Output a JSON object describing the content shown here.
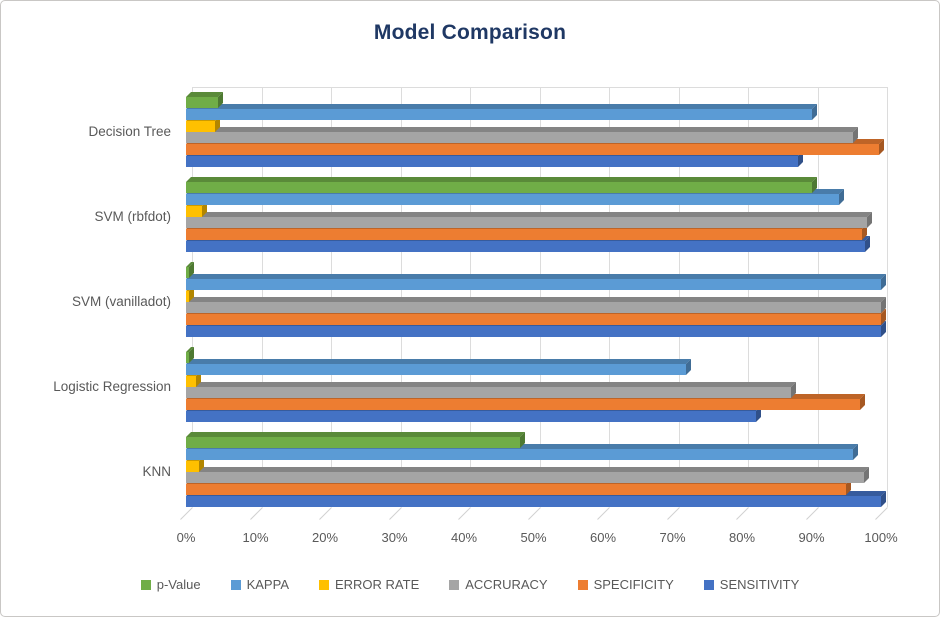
{
  "title": "Model Comparison",
  "style": {
    "title_color": "#1f3864",
    "text_color": "#595959",
    "gridline_color": "#dcdcdc",
    "background": "#ffffff"
  },
  "chart_data": {
    "type": "bar",
    "orientation": "horizontal",
    "effect": "3d",
    "title": "Model Comparison",
    "xlabel": "",
    "ylabel": "",
    "xlim": [
      0,
      100
    ],
    "grid": true,
    "legend_position": "bottom",
    "value_unit": "percent",
    "x_ticks": [
      "0%",
      "10%",
      "20%",
      "30%",
      "40%",
      "50%",
      "60%",
      "70%",
      "80%",
      "90%",
      "100%"
    ],
    "categories": [
      "Decision Tree",
      "SVM (rbfdot)",
      "SVM (vanilladot)",
      "Logistic Regression",
      "KNN"
    ],
    "series": [
      {
        "name": "p-Value",
        "color": "#70ad47",
        "values": [
          4.6,
          90,
          0.5,
          0.5,
          48
        ]
      },
      {
        "name": "KAPPA",
        "color": "#5b9bd5",
        "values": [
          90,
          94,
          100,
          72,
          96
        ]
      },
      {
        "name": "ERROR RATE",
        "color": "#ffc000",
        "values": [
          4.2,
          2.3,
          0.4,
          1.4,
          1.9
        ]
      },
      {
        "name": "ACCRURACY",
        "color": "#a5a5a5",
        "values": [
          96,
          98,
          100,
          87,
          97.5
        ]
      },
      {
        "name": "SPECIFICITY",
        "color": "#ed7d31",
        "values": [
          99.7,
          97.2,
          100,
          97,
          95
        ]
      },
      {
        "name": "SENSITIVITY",
        "color": "#4472c4",
        "values": [
          88,
          97.7,
          100,
          82,
          100
        ]
      }
    ]
  }
}
